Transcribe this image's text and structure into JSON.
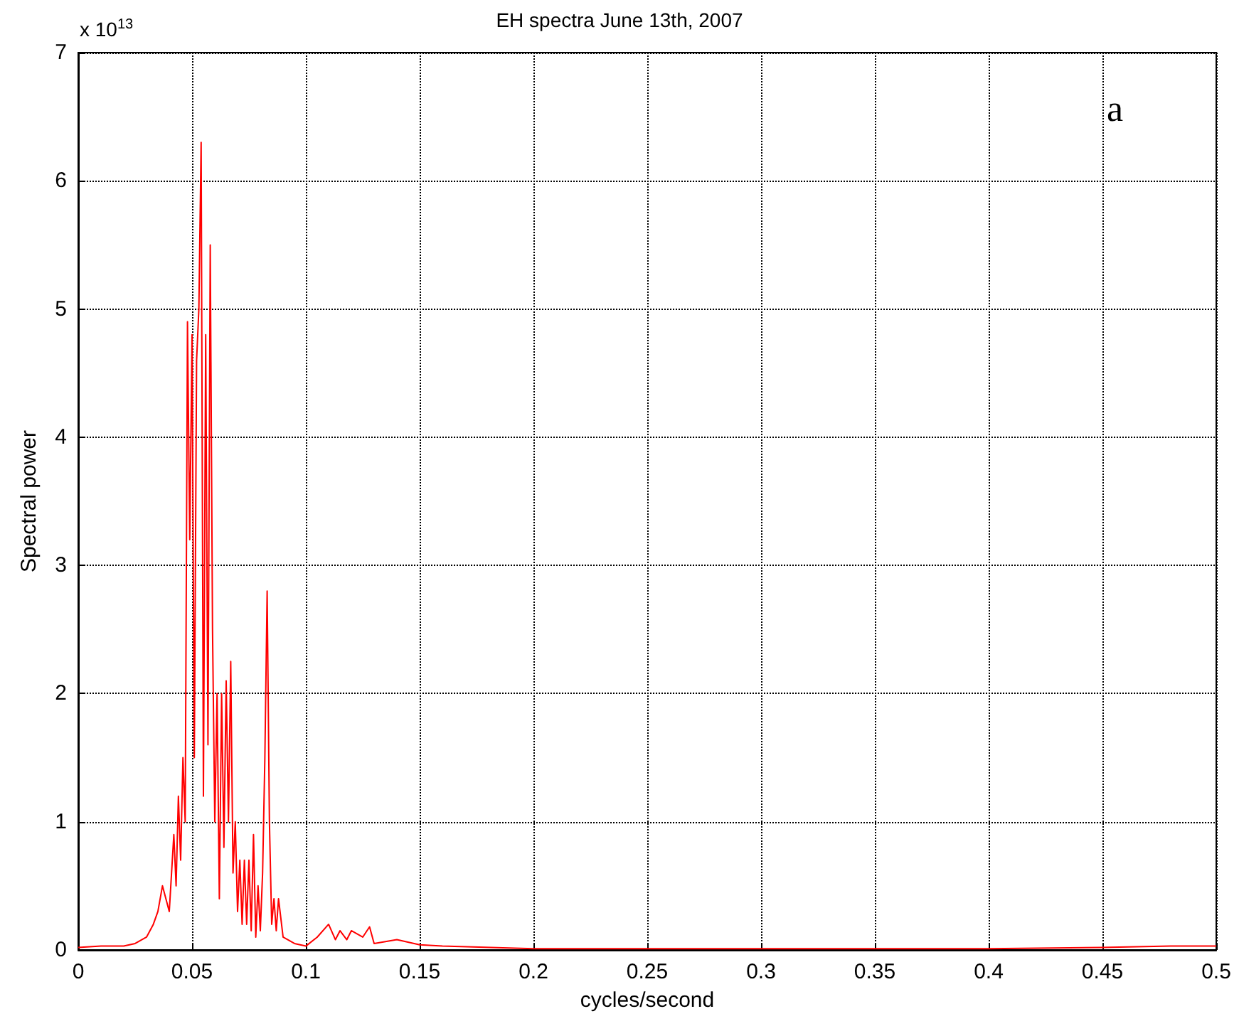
{
  "chart_data": {
    "type": "line",
    "title": "EH spectra June 13th, 2007",
    "xlabel": "cycles/second",
    "ylabel": "Spectral power",
    "annotations": [
      "x 10$^{13}$",
      "a"
    ],
    "x": [
      0,
      0.01,
      0.02,
      0.025,
      0.03,
      0.033,
      0.035,
      0.037,
      0.04,
      0.042,
      0.043,
      0.044,
      0.045,
      0.046,
      0.047,
      0.048,
      0.049,
      0.05,
      0.051,
      0.052,
      0.053,
      0.054,
      0.055,
      0.056,
      0.057,
      0.058,
      0.059,
      0.06,
      0.061,
      0.062,
      0.063,
      0.064,
      0.065,
      0.066,
      0.067,
      0.068,
      0.069,
      0.07,
      0.071,
      0.072,
      0.073,
      0.074,
      0.075,
      0.076,
      0.077,
      0.078,
      0.079,
      0.08,
      0.081,
      0.082,
      0.083,
      0.084,
      0.085,
      0.086,
      0.087,
      0.088,
      0.09,
      0.095,
      0.1,
      0.105,
      0.11,
      0.113,
      0.115,
      0.118,
      0.12,
      0.125,
      0.128,
      0.13,
      0.14,
      0.15,
      0.16,
      0.2,
      0.3,
      0.4,
      0.45,
      0.48,
      0.5
    ],
    "series": [
      {
        "color": "#ff0000",
        "values": [
          0.02,
          0.03,
          0.03,
          0.05,
          0.1,
          0.2,
          0.3,
          0.5,
          0.3,
          0.9,
          0.5,
          1.2,
          0.7,
          1.5,
          1.0,
          4.9,
          3.2,
          4.8,
          1.5,
          4.6,
          5.0,
          6.3,
          1.2,
          4.8,
          1.6,
          5.5,
          2.5,
          1.0,
          2.0,
          0.4,
          2.0,
          0.8,
          2.1,
          1.0,
          2.25,
          0.6,
          1.0,
          0.3,
          0.7,
          0.2,
          0.7,
          0.2,
          0.7,
          0.15,
          0.9,
          0.1,
          0.5,
          0.15,
          0.6,
          1.5,
          2.8,
          1.0,
          0.2,
          0.4,
          0.15,
          0.4,
          0.1,
          0.05,
          0.03,
          0.1,
          0.2,
          0.08,
          0.15,
          0.08,
          0.15,
          0.1,
          0.18,
          0.05,
          0.08,
          0.04,
          0.03,
          0.01,
          0.01,
          0.01,
          0.02,
          0.03,
          0.03
        ]
      }
    ],
    "xlim": [
      0,
      0.5
    ],
    "xticks": [
      0,
      0.05,
      0.1,
      0.15,
      0.2,
      0.25,
      0.3,
      0.35,
      0.4,
      0.45,
      0.5
    ],
    "ylim": [
      0,
      7
    ],
    "yticks": [
      0,
      1,
      2,
      3,
      4,
      5,
      6,
      7
    ],
    "grid": true,
    "marker": "none",
    "line_style": "solid"
  }
}
